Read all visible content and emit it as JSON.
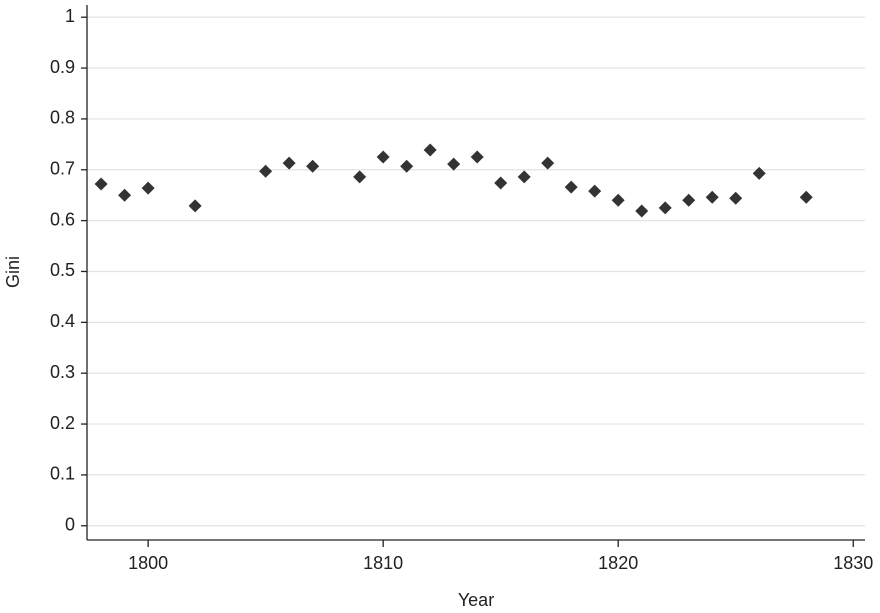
{
  "chart_data": {
    "type": "scatter",
    "x_label": "Year",
    "y_label": "Gini",
    "x": [
      1798,
      1799,
      1800,
      1802,
      1805,
      1806,
      1807,
      1809,
      1810,
      1811,
      1812,
      1813,
      1814,
      1815,
      1816,
      1817,
      1818,
      1819,
      1820,
      1821,
      1822,
      1823,
      1824,
      1825,
      1826,
      1828
    ],
    "values": [
      0.672,
      0.65,
      0.664,
      0.629,
      0.697,
      0.713,
      0.707,
      0.686,
      0.725,
      0.707,
      0.739,
      0.711,
      0.725,
      0.674,
      0.686,
      0.713,
      0.666,
      0.658,
      0.64,
      0.619,
      0.625,
      0.64,
      0.646,
      0.644,
      0.693,
      0.646
    ],
    "color": "#333333",
    "xlim": [
      1797.4,
      1830.5
    ],
    "xticks": [
      1800,
      1810,
      1820,
      1830
    ],
    "ylim": [
      -0.028,
      1.024
    ],
    "yticks": [
      0,
      0.1,
      0.2,
      0.3,
      0.4,
      0.5,
      0.6,
      0.7,
      0.8,
      0.9,
      1
    ],
    "grid": true
  }
}
